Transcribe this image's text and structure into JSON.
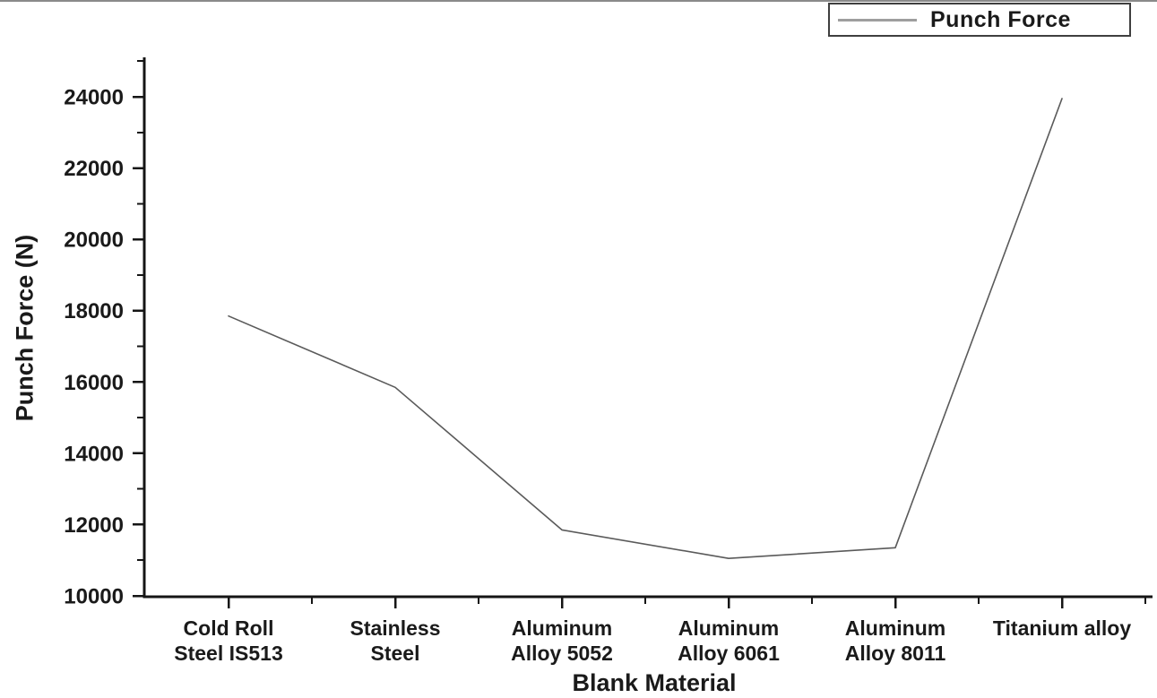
{
  "legend": {
    "label": "Punch Force"
  },
  "colors": {
    "background": "#ffffff",
    "figure_border": "#8a8a8a",
    "axis": "#151515",
    "text": "#1a1a1a",
    "data_line": "#5a5a5a",
    "legend_line": "#9e9e9e"
  },
  "chart_data": {
    "type": "line",
    "title": "",
    "xlabel": "Blank Material",
    "ylabel": "Punch Force (N)",
    "categories": [
      "Cold Roll Steel IS513",
      "Stainless Steel",
      "Aluminum Alloy 5052",
      "Aluminum Alloy 6061",
      "Aluminum Alloy 8011",
      "Titanium alloy"
    ],
    "category_label_lines": [
      [
        "Cold Roll",
        "Steel IS513"
      ],
      [
        "Stainless",
        "Steel"
      ],
      [
        "Aluminum",
        "Alloy 5052"
      ],
      [
        "Aluminum",
        "Alloy 6061"
      ],
      [
        "Aluminum",
        "Alloy 8011"
      ],
      [
        "Titanium alloy"
      ]
    ],
    "series": [
      {
        "name": "Punch Force",
        "values": [
          17850,
          15850,
          11850,
          11050,
          11350,
          23950
        ]
      }
    ],
    "ylim": [
      10000,
      25000
    ],
    "yticks_major": [
      10000,
      12000,
      14000,
      16000,
      18000,
      20000,
      22000,
      24000
    ],
    "yticks_minor": [
      11000,
      13000,
      15000,
      17000,
      19000,
      21000,
      23000,
      25000
    ],
    "grid": false,
    "legend_position": "top-right",
    "legend_entries": [
      "Punch Force"
    ]
  }
}
